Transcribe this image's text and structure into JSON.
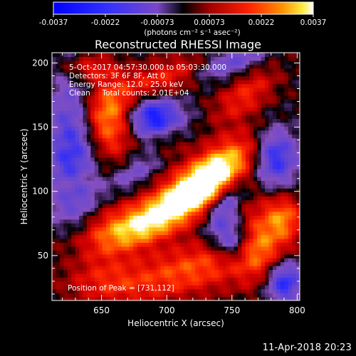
{
  "chart_data": {
    "type": "heatmap",
    "title": "Reconstructed RHESSI Image",
    "xlabel": "Heliocentric X (arcsec)",
    "ylabel": "Heliocentric Y (arcsec)",
    "xlim": [
      612,
      802
    ],
    "ylim": [
      15,
      208
    ],
    "x_ticks": [
      650,
      700,
      750,
      800
    ],
    "y_ticks": [
      50,
      100,
      150,
      200
    ],
    "colorbar": {
      "ticks": [
        "-0.0037",
        "-0.0022",
        "-0.00073",
        "0.00073",
        "0.0022",
        "0.0037"
      ],
      "units": "(photons cm⁻² s⁻¹ asec⁻²)",
      "range": [
        -0.0037,
        0.0037
      ]
    },
    "annotations": [
      "5-Oct-2017 04:57:30.000 to 05:03:30.000",
      "Detectors: 3F 6F 8F, Att 0",
      "Energy Range: 12.0 - 25.0 keV",
      "Clean     Total counts: 2.01E+04"
    ],
    "peak_label": "Position of Peak = [731,112]",
    "peak": {
      "x": 731,
      "y": 112,
      "value": 0.0037
    },
    "sources": [
      {
        "x": 731,
        "y": 112,
        "sx": 30,
        "sy": 12,
        "angle": 38,
        "amp": 1.0
      },
      {
        "x": 705,
        "y": 88,
        "sx": 45,
        "sy": 11,
        "angle": 32,
        "amp": 0.65
      },
      {
        "x": 662,
        "y": 72,
        "sx": 32,
        "sy": 12,
        "angle": 15,
        "amp": 0.55
      },
      {
        "x": 655,
        "y": 155,
        "sx": 14,
        "sy": 20,
        "angle": 0,
        "amp": 0.8
      },
      {
        "x": 700,
        "y": 188,
        "sx": 35,
        "sy": 10,
        "angle": 20,
        "amp": 0.5
      },
      {
        "x": 640,
        "y": 196,
        "sx": 15,
        "sy": 8,
        "angle": 0,
        "amp": 0.45
      },
      {
        "x": 760,
        "y": 175,
        "sx": 20,
        "sy": 10,
        "angle": 40,
        "amp": 0.45
      },
      {
        "x": 720,
        "y": 40,
        "sx": 40,
        "sy": 14,
        "angle": 15,
        "amp": 0.6
      },
      {
        "x": 770,
        "y": 60,
        "sx": 14,
        "sy": 22,
        "angle": 0,
        "amp": 0.55
      },
      {
        "x": 790,
        "y": 80,
        "sx": 10,
        "sy": 12,
        "angle": 0,
        "amp": 0.6
      },
      {
        "x": 652,
        "y": 30,
        "sx": 22,
        "sy": 12,
        "angle": 0,
        "amp": 0.35
      },
      {
        "x": 700,
        "y": 140,
        "sx": 10,
        "sy": 8,
        "angle": 0,
        "amp": 0.25
      },
      {
        "x": 629,
        "y": 108,
        "sx": 12,
        "sy": 6,
        "angle": 25,
        "amp": 0.25
      },
      {
        "x": 745,
        "y": 90,
        "sx": 16,
        "sy": 7,
        "angle": 60,
        "amp": -0.55
      },
      {
        "x": 750,
        "y": 62,
        "sx": 10,
        "sy": 12,
        "angle": 0,
        "amp": -0.75
      },
      {
        "x": 783,
        "y": 128,
        "sx": 12,
        "sy": 16,
        "angle": 0,
        "amp": -0.8
      },
      {
        "x": 690,
        "y": 158,
        "sx": 15,
        "sy": 12,
        "angle": 0,
        "amp": -0.9
      },
      {
        "x": 628,
        "y": 130,
        "sx": 14,
        "sy": 45,
        "angle": 0,
        "amp": -0.7
      },
      {
        "x": 745,
        "y": 200,
        "sx": 22,
        "sy": 8,
        "angle": 20,
        "amp": -0.6
      },
      {
        "x": 790,
        "y": 30,
        "sx": 10,
        "sy": 12,
        "angle": 0,
        "amp": -0.8
      },
      {
        "x": 675,
        "y": 115,
        "sx": 15,
        "sy": 7,
        "angle": 35,
        "amp": -0.35
      }
    ]
  },
  "footer_timestamp": "11-Apr-2018 20:23"
}
